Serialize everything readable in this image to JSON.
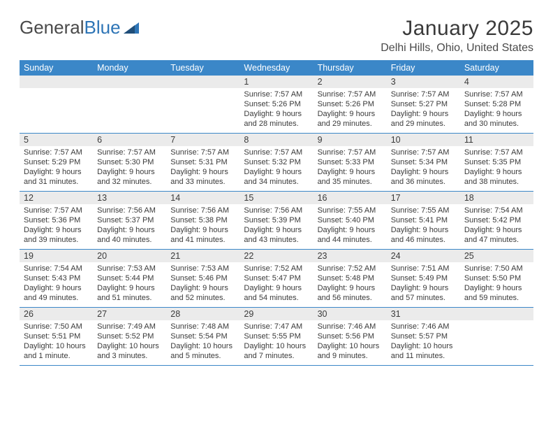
{
  "logo": {
    "text_a": "General",
    "text_b": "Blue"
  },
  "title": "January 2025",
  "location": "Delhi Hills, Ohio, United States",
  "colors": {
    "header_bg": "#3b87c8",
    "header_text": "#ffffff",
    "daynum_bg": "#ebebeb",
    "border": "#3b87c8",
    "text": "#3a3a3a",
    "logo_gray": "#4a4a4a",
    "logo_blue": "#2e75b6"
  },
  "day_headers": [
    "Sunday",
    "Monday",
    "Tuesday",
    "Wednesday",
    "Thursday",
    "Friday",
    "Saturday"
  ],
  "weeks": [
    [
      {
        "n": "",
        "sr": "",
        "ss": "",
        "dl": ""
      },
      {
        "n": "",
        "sr": "",
        "ss": "",
        "dl": ""
      },
      {
        "n": "",
        "sr": "",
        "ss": "",
        "dl": ""
      },
      {
        "n": "1",
        "sr": "Sunrise: 7:57 AM",
        "ss": "Sunset: 5:26 PM",
        "dl": "Daylight: 9 hours and 28 minutes."
      },
      {
        "n": "2",
        "sr": "Sunrise: 7:57 AM",
        "ss": "Sunset: 5:26 PM",
        "dl": "Daylight: 9 hours and 29 minutes."
      },
      {
        "n": "3",
        "sr": "Sunrise: 7:57 AM",
        "ss": "Sunset: 5:27 PM",
        "dl": "Daylight: 9 hours and 29 minutes."
      },
      {
        "n": "4",
        "sr": "Sunrise: 7:57 AM",
        "ss": "Sunset: 5:28 PM",
        "dl": "Daylight: 9 hours and 30 minutes."
      }
    ],
    [
      {
        "n": "5",
        "sr": "Sunrise: 7:57 AM",
        "ss": "Sunset: 5:29 PM",
        "dl": "Daylight: 9 hours and 31 minutes."
      },
      {
        "n": "6",
        "sr": "Sunrise: 7:57 AM",
        "ss": "Sunset: 5:30 PM",
        "dl": "Daylight: 9 hours and 32 minutes."
      },
      {
        "n": "7",
        "sr": "Sunrise: 7:57 AM",
        "ss": "Sunset: 5:31 PM",
        "dl": "Daylight: 9 hours and 33 minutes."
      },
      {
        "n": "8",
        "sr": "Sunrise: 7:57 AM",
        "ss": "Sunset: 5:32 PM",
        "dl": "Daylight: 9 hours and 34 minutes."
      },
      {
        "n": "9",
        "sr": "Sunrise: 7:57 AM",
        "ss": "Sunset: 5:33 PM",
        "dl": "Daylight: 9 hours and 35 minutes."
      },
      {
        "n": "10",
        "sr": "Sunrise: 7:57 AM",
        "ss": "Sunset: 5:34 PM",
        "dl": "Daylight: 9 hours and 36 minutes."
      },
      {
        "n": "11",
        "sr": "Sunrise: 7:57 AM",
        "ss": "Sunset: 5:35 PM",
        "dl": "Daylight: 9 hours and 38 minutes."
      }
    ],
    [
      {
        "n": "12",
        "sr": "Sunrise: 7:57 AM",
        "ss": "Sunset: 5:36 PM",
        "dl": "Daylight: 9 hours and 39 minutes."
      },
      {
        "n": "13",
        "sr": "Sunrise: 7:56 AM",
        "ss": "Sunset: 5:37 PM",
        "dl": "Daylight: 9 hours and 40 minutes."
      },
      {
        "n": "14",
        "sr": "Sunrise: 7:56 AM",
        "ss": "Sunset: 5:38 PM",
        "dl": "Daylight: 9 hours and 41 minutes."
      },
      {
        "n": "15",
        "sr": "Sunrise: 7:56 AM",
        "ss": "Sunset: 5:39 PM",
        "dl": "Daylight: 9 hours and 43 minutes."
      },
      {
        "n": "16",
        "sr": "Sunrise: 7:55 AM",
        "ss": "Sunset: 5:40 PM",
        "dl": "Daylight: 9 hours and 44 minutes."
      },
      {
        "n": "17",
        "sr": "Sunrise: 7:55 AM",
        "ss": "Sunset: 5:41 PM",
        "dl": "Daylight: 9 hours and 46 minutes."
      },
      {
        "n": "18",
        "sr": "Sunrise: 7:54 AM",
        "ss": "Sunset: 5:42 PM",
        "dl": "Daylight: 9 hours and 47 minutes."
      }
    ],
    [
      {
        "n": "19",
        "sr": "Sunrise: 7:54 AM",
        "ss": "Sunset: 5:43 PM",
        "dl": "Daylight: 9 hours and 49 minutes."
      },
      {
        "n": "20",
        "sr": "Sunrise: 7:53 AM",
        "ss": "Sunset: 5:44 PM",
        "dl": "Daylight: 9 hours and 51 minutes."
      },
      {
        "n": "21",
        "sr": "Sunrise: 7:53 AM",
        "ss": "Sunset: 5:46 PM",
        "dl": "Daylight: 9 hours and 52 minutes."
      },
      {
        "n": "22",
        "sr": "Sunrise: 7:52 AM",
        "ss": "Sunset: 5:47 PM",
        "dl": "Daylight: 9 hours and 54 minutes."
      },
      {
        "n": "23",
        "sr": "Sunrise: 7:52 AM",
        "ss": "Sunset: 5:48 PM",
        "dl": "Daylight: 9 hours and 56 minutes."
      },
      {
        "n": "24",
        "sr": "Sunrise: 7:51 AM",
        "ss": "Sunset: 5:49 PM",
        "dl": "Daylight: 9 hours and 57 minutes."
      },
      {
        "n": "25",
        "sr": "Sunrise: 7:50 AM",
        "ss": "Sunset: 5:50 PM",
        "dl": "Daylight: 9 hours and 59 minutes."
      }
    ],
    [
      {
        "n": "26",
        "sr": "Sunrise: 7:50 AM",
        "ss": "Sunset: 5:51 PM",
        "dl": "Daylight: 10 hours and 1 minute."
      },
      {
        "n": "27",
        "sr": "Sunrise: 7:49 AM",
        "ss": "Sunset: 5:52 PM",
        "dl": "Daylight: 10 hours and 3 minutes."
      },
      {
        "n": "28",
        "sr": "Sunrise: 7:48 AM",
        "ss": "Sunset: 5:54 PM",
        "dl": "Daylight: 10 hours and 5 minutes."
      },
      {
        "n": "29",
        "sr": "Sunrise: 7:47 AM",
        "ss": "Sunset: 5:55 PM",
        "dl": "Daylight: 10 hours and 7 minutes."
      },
      {
        "n": "30",
        "sr": "Sunrise: 7:46 AM",
        "ss": "Sunset: 5:56 PM",
        "dl": "Daylight: 10 hours and 9 minutes."
      },
      {
        "n": "31",
        "sr": "Sunrise: 7:46 AM",
        "ss": "Sunset: 5:57 PM",
        "dl": "Daylight: 10 hours and 11 minutes."
      },
      {
        "n": "",
        "sr": "",
        "ss": "",
        "dl": ""
      }
    ]
  ]
}
